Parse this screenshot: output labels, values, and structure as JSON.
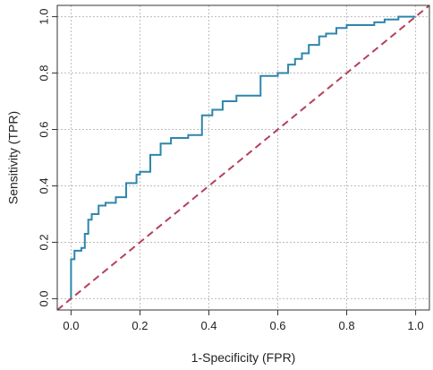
{
  "chart_data": {
    "type": "line",
    "title": "",
    "xlabel": "1-Specificity (FPR)",
    "ylabel": "Sensitivity (TPR)",
    "xlim": [
      -0.04,
      1.04
    ],
    "ylim": [
      -0.04,
      1.04
    ],
    "xticks": [
      0.0,
      0.2,
      0.4,
      0.6,
      0.8,
      1.0
    ],
    "yticks": [
      0.0,
      0.2,
      0.4,
      0.6,
      0.8,
      1.0
    ],
    "xtick_labels": [
      "0.0",
      "0.2",
      "0.4",
      "0.6",
      "0.8",
      "1.0"
    ],
    "ytick_labels": [
      "0.0",
      "0.2",
      "0.4",
      "0.6",
      "0.8",
      "1.0"
    ],
    "grid": true,
    "series": [
      {
        "color": "#2e86ab",
        "style": "step",
        "x": [
          0.0,
          0.0,
          0.01,
          0.01,
          0.03,
          0.03,
          0.04,
          0.04,
          0.05,
          0.05,
          0.06,
          0.06,
          0.08,
          0.08,
          0.1,
          0.1,
          0.13,
          0.13,
          0.16,
          0.16,
          0.19,
          0.19,
          0.2,
          0.2,
          0.23,
          0.23,
          0.26,
          0.26,
          0.29,
          0.29,
          0.34,
          0.34,
          0.38,
          0.38,
          0.41,
          0.41,
          0.44,
          0.44,
          0.48,
          0.48,
          0.55,
          0.55,
          0.6,
          0.6,
          0.63,
          0.63,
          0.65,
          0.65,
          0.67,
          0.67,
          0.69,
          0.69,
          0.72,
          0.72,
          0.74,
          0.74,
          0.77,
          0.77,
          0.8,
          0.8,
          0.88,
          0.88,
          0.91,
          0.91,
          0.95,
          0.95,
          1.0
        ],
        "y": [
          0.0,
          0.14,
          0.14,
          0.17,
          0.17,
          0.18,
          0.18,
          0.23,
          0.23,
          0.28,
          0.28,
          0.3,
          0.3,
          0.33,
          0.33,
          0.34,
          0.34,
          0.36,
          0.36,
          0.41,
          0.41,
          0.44,
          0.44,
          0.45,
          0.45,
          0.51,
          0.51,
          0.55,
          0.55,
          0.57,
          0.57,
          0.58,
          0.58,
          0.65,
          0.65,
          0.67,
          0.67,
          0.7,
          0.7,
          0.72,
          0.72,
          0.79,
          0.79,
          0.8,
          0.8,
          0.83,
          0.83,
          0.85,
          0.85,
          0.87,
          0.87,
          0.9,
          0.9,
          0.93,
          0.93,
          0.94,
          0.94,
          0.96,
          0.96,
          0.97,
          0.97,
          0.98,
          0.98,
          0.99,
          0.99,
          1.0,
          1.0
        ]
      },
      {
        "color": "#b5405a",
        "style": "dashed",
        "x": [
          -0.04,
          1.04
        ],
        "y": [
          -0.04,
          1.04
        ]
      }
    ]
  }
}
